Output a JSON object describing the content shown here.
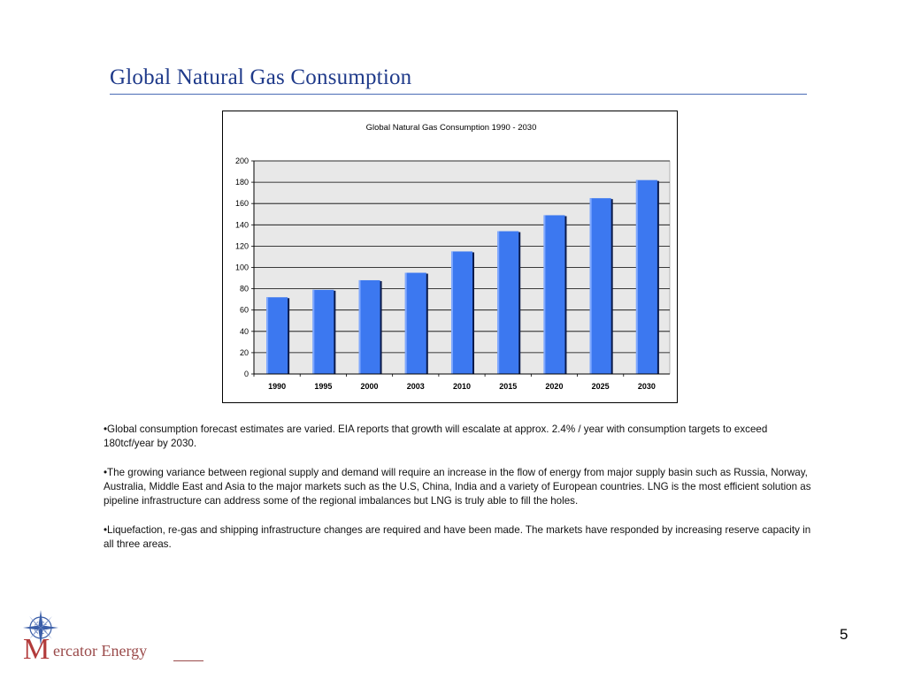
{
  "slide": {
    "title": "Global Natural Gas Consumption",
    "page_number": "5"
  },
  "chart_data": {
    "type": "bar",
    "title": "Global Natural Gas Consumption  1990 - 2030",
    "categories": [
      "1990",
      "1995",
      "2000",
      "2003",
      "2010",
      "2015",
      "2020",
      "2025",
      "2030"
    ],
    "values": [
      72,
      79,
      88,
      95,
      115,
      134,
      149,
      165,
      182
    ],
    "yticks": [
      "0",
      "20",
      "40",
      "60",
      "80",
      "100",
      "120",
      "140",
      "160",
      "180",
      "200"
    ],
    "ylim": [
      0,
      200
    ],
    "xlabel": "",
    "ylabel": "",
    "grid": true,
    "colors": {
      "bar": "#3c78f0",
      "bar_shadow": "#0a1a4a",
      "plot_bg": "#e8e8e8"
    }
  },
  "bullets": [
    "•Global consumption forecast estimates are varied. EIA reports that growth will escalate at approx. 2.4% / year with consumption targets to exceed 180tcf/year by 2030.",
    "•The growing variance between regional supply and demand will require an increase in the flow of energy from major supply basin such as Russia, Norway, Australia, Middle East and Asia to the major markets such as the U.S, China, India and a variety of European countries. LNG is the most efficient solution as pipeline infrastructure can address some of the regional imbalances but LNG is truly able to fill the holes.",
    "•Liquefaction, re-gas and shipping infrastructure changes are required and have been made. The markets have responded by increasing reserve capacity in all three areas."
  ],
  "logo": {
    "initial": "M",
    "text": "ercator Energy",
    "icon": "compass-rose-icon",
    "colors": {
      "text": "#9a4a4a",
      "initial": "#b23b3b",
      "compass": "#3b5ea8"
    }
  }
}
